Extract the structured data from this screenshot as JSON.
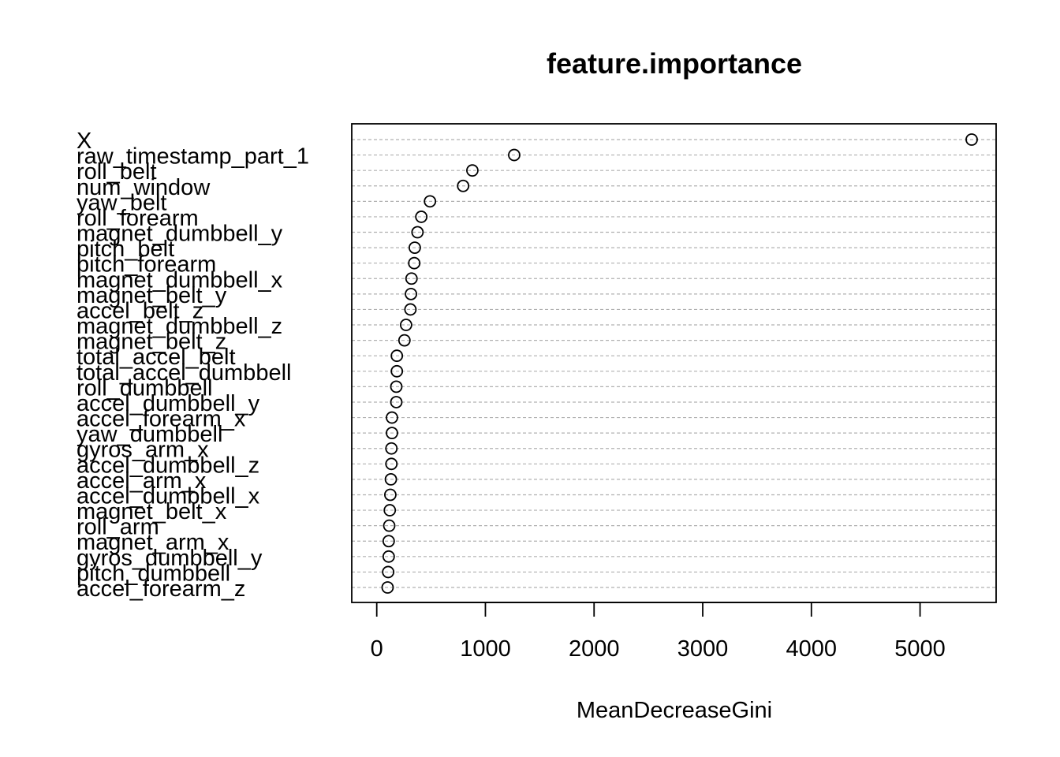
{
  "chart_data": {
    "type": "scatter",
    "title": "feature.importance",
    "xlabel": "MeanDecreaseGini",
    "ylabel": "",
    "xlim": [
      -230,
      5700
    ],
    "xticks": [
      0,
      1000,
      2000,
      3000,
      4000,
      5000
    ],
    "grid": "horizontal dashed",
    "categories": [
      "X",
      "raw_timestamp_part_1",
      "roll_belt",
      "num_window",
      "yaw_belt",
      "roll_forearm",
      "magnet_dumbbell_y",
      "pitch_belt",
      "pitch_forearm",
      "magnet_dumbbell_x",
      "magnet_belt_y",
      "accel_belt_z",
      "magnet_dumbbell_z",
      "magnet_belt_z",
      "total_accel_belt",
      "total_accel_dumbbell",
      "roll_dumbbell",
      "accel_dumbbell_y",
      "accel_forearm_x",
      "yaw_dumbbell",
      "gyros_arm_x",
      "accel_dumbbell_z",
      "accel_arm_x",
      "accel_dumbbell_x",
      "magnet_belt_x",
      "roll_arm",
      "magnet_arm_x",
      "gyros_dumbbell_y",
      "pitch_dumbbell",
      "accel_forearm_z"
    ],
    "values": [
      5475,
      1265,
      880,
      795,
      490,
      410,
      375,
      350,
      345,
      320,
      315,
      310,
      270,
      255,
      185,
      185,
      180,
      180,
      140,
      140,
      135,
      135,
      130,
      125,
      120,
      115,
      110,
      110,
      105,
      100
    ]
  }
}
